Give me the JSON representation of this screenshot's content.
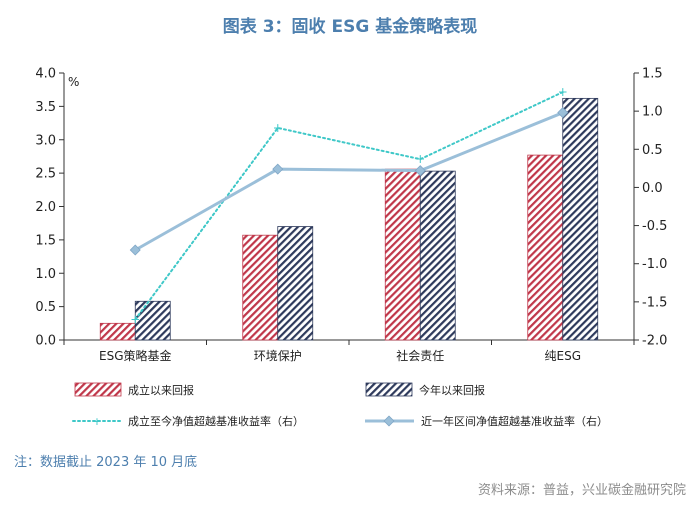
{
  "title": "图表 3：固收 ESG 基金策略表现",
  "note": "注：数据截止 2023 年 10 月底",
  "source": "资料来源：普益，兴业碳金融研究院",
  "chart_data": {
    "type": "bar",
    "categories": [
      "ESG策略基金",
      "环境保护",
      "社会责任",
      "纯ESG"
    ],
    "unit_label": "%",
    "left_axis": {
      "ylim": [
        0.0,
        4.0
      ],
      "ticks": [
        "0.0",
        "0.5",
        "1.0",
        "1.5",
        "2.0",
        "2.5",
        "3.0",
        "3.5",
        "4.0"
      ]
    },
    "right_axis": {
      "ylim": [
        -2.0,
        1.5
      ],
      "ticks": [
        "-2.0",
        "-1.5",
        "-1.0",
        "-0.5",
        "0.0",
        "0.5",
        "1.0",
        "1.5"
      ]
    },
    "series": [
      {
        "name": "成立以来回报",
        "kind": "bar",
        "axis": "left",
        "color": "#c0374a",
        "values": [
          0.25,
          1.57,
          2.56,
          2.77
        ]
      },
      {
        "name": "今年以来回报",
        "kind": "bar",
        "axis": "left",
        "color": "#2e3a5c",
        "values": [
          0.58,
          1.7,
          2.53,
          3.62
        ]
      },
      {
        "name": "成立至今净值超越基准收益率（右）",
        "kind": "line",
        "axis": "right",
        "color": "#3fc8c8",
        "style": "dotted",
        "values": [
          -1.73,
          0.78,
          0.37,
          1.25
        ]
      },
      {
        "name": "近一年区间净值超越基准收益率（右）",
        "kind": "line",
        "axis": "right",
        "color": "#9bbfd9",
        "style": "solid",
        "values": [
          -0.82,
          0.24,
          0.22,
          0.98
        ]
      }
    ]
  }
}
